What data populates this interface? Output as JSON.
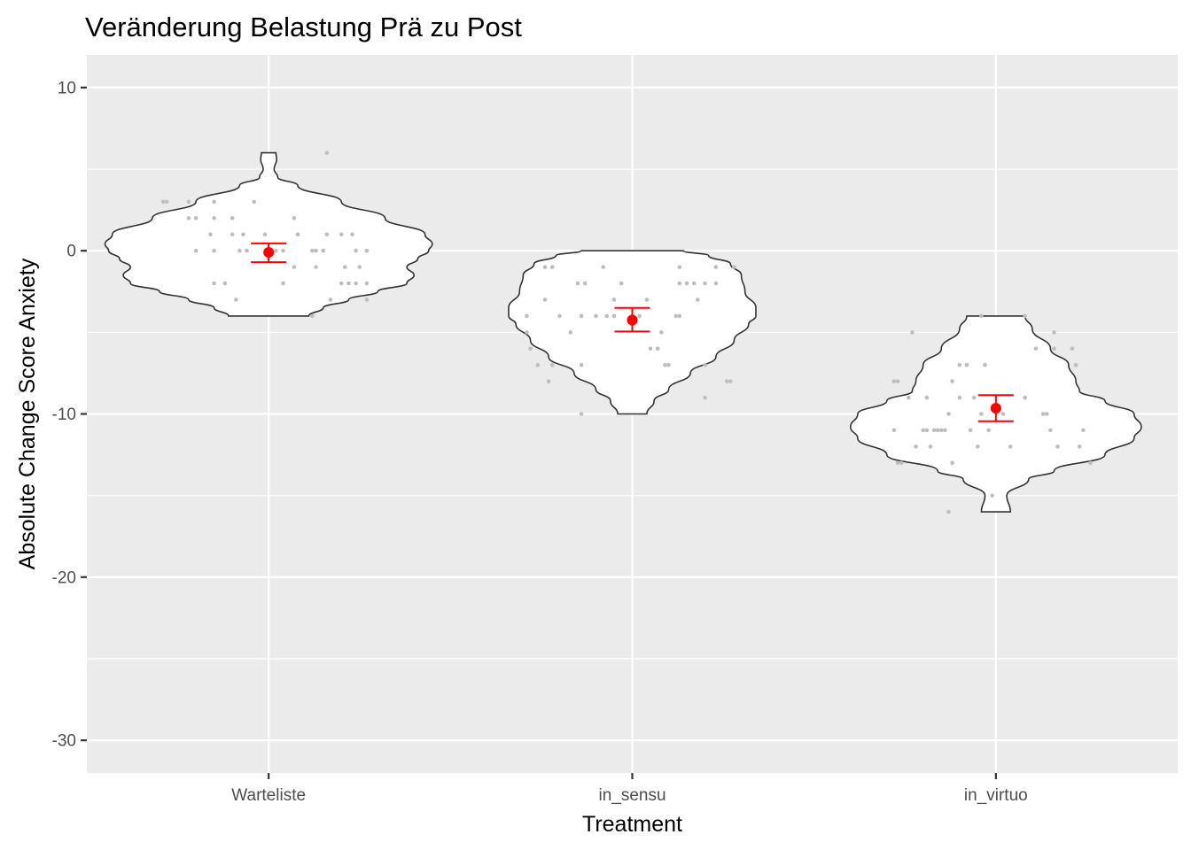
{
  "chart_data": {
    "type": "violin",
    "title": "Veränderung Belastung Prä zu Post",
    "xlabel": "Treatment",
    "ylabel": "Absolute Change Score Anxiety",
    "categories": [
      "Warteliste",
      "in_sensu",
      "in_virtuo"
    ],
    "ylim": [
      -32,
      12
    ],
    "yticks": [
      10,
      0,
      -10,
      -20,
      -30
    ],
    "y_minor_ticks": [
      5,
      -5,
      -15,
      -25
    ],
    "grid": true,
    "legend": "none",
    "colors": {
      "panel": "#ebebeb",
      "grid": "#ffffff",
      "violin_fill": "#ffffff",
      "violin_stroke": "#333333",
      "point": "#bebebe",
      "mean": "#ff0000",
      "tick_label": "#4d4d4d"
    },
    "violins": [
      {
        "group": "Warteliste",
        "profile": [
          {
            "y": 6.0,
            "w": 0.02
          },
          {
            "y": 5.6,
            "w": 0.022
          },
          {
            "y": 5.0,
            "w": 0.015
          },
          {
            "y": 4.5,
            "w": 0.025
          },
          {
            "y": 4.0,
            "w": 0.08
          },
          {
            "y": 3.0,
            "w": 0.2
          },
          {
            "y": 2.0,
            "w": 0.32
          },
          {
            "y": 1.0,
            "w": 0.43
          },
          {
            "y": 0.4,
            "w": 0.45
          },
          {
            "y": 0.0,
            "w": 0.44
          },
          {
            "y": -0.5,
            "w": 0.41
          },
          {
            "y": -1.0,
            "w": 0.38
          },
          {
            "y": -1.5,
            "w": 0.4
          },
          {
            "y": -2.0,
            "w": 0.38
          },
          {
            "y": -2.5,
            "w": 0.3
          },
          {
            "y": -3.0,
            "w": 0.22
          },
          {
            "y": -3.5,
            "w": 0.15
          },
          {
            "y": -4.0,
            "w": 0.11
          }
        ],
        "mean": -0.1,
        "ci": [
          -0.7,
          0.45
        ]
      },
      {
        "group": "in_sensu",
        "profile": [
          {
            "y": 0.0,
            "w": 0.14
          },
          {
            "y": -0.3,
            "w": 0.21
          },
          {
            "y": -0.8,
            "w": 0.27
          },
          {
            "y": -1.5,
            "w": 0.3
          },
          {
            "y": -2.5,
            "w": 0.31
          },
          {
            "y": -3.5,
            "w": 0.34
          },
          {
            "y": -4.0,
            "w": 0.34
          },
          {
            "y": -4.5,
            "w": 0.32
          },
          {
            "y": -5.5,
            "w": 0.28
          },
          {
            "y": -6.5,
            "w": 0.23
          },
          {
            "y": -7.5,
            "w": 0.16
          },
          {
            "y": -8.5,
            "w": 0.1
          },
          {
            "y": -9.2,
            "w": 0.06
          },
          {
            "y": -10.0,
            "w": 0.04
          }
        ],
        "mean": -4.25,
        "ci": [
          -4.95,
          -3.5
        ]
      },
      {
        "group": "in_virtuo",
        "profile": [
          {
            "y": -4.0,
            "w": 0.08
          },
          {
            "y": -4.8,
            "w": 0.1
          },
          {
            "y": -6.0,
            "w": 0.15
          },
          {
            "y": -7.0,
            "w": 0.2
          },
          {
            "y": -8.0,
            "w": 0.22
          },
          {
            "y": -8.6,
            "w": 0.23
          },
          {
            "y": -9.2,
            "w": 0.3
          },
          {
            "y": -10.0,
            "w": 0.38
          },
          {
            "y": -10.8,
            "w": 0.4
          },
          {
            "y": -11.5,
            "w": 0.38
          },
          {
            "y": -12.5,
            "w": 0.3
          },
          {
            "y": -13.5,
            "w": 0.16
          },
          {
            "y": -14.0,
            "w": 0.09
          },
          {
            "y": -15.0,
            "w": 0.03
          },
          {
            "y": -16.0,
            "w": 0.04
          }
        ],
        "mean": -9.65,
        "ci": [
          -10.45,
          -8.85
        ]
      }
    ],
    "points": [
      {
        "group": "Warteliste",
        "values": [
          {
            "dx": -0.29,
            "y": 3
          },
          {
            "dx": -0.28,
            "y": 3
          },
          {
            "dx": -0.22,
            "y": 2
          },
          {
            "dx": -0.2,
            "y": 2
          },
          {
            "dx": -0.22,
            "y": 3
          },
          {
            "dx": -0.15,
            "y": 3
          },
          {
            "dx": -0.15,
            "y": 2
          },
          {
            "dx": -0.1,
            "y": 1
          },
          {
            "dx": -0.07,
            "y": 1
          },
          {
            "dx": -0.01,
            "y": 1
          },
          {
            "dx": -0.16,
            "y": 1
          },
          {
            "dx": -0.2,
            "y": 0
          },
          {
            "dx": -0.15,
            "y": 0
          },
          {
            "dx": -0.08,
            "y": 0
          },
          {
            "dx": -0.06,
            "y": 0
          },
          {
            "dx": -0.15,
            "y": -2
          },
          {
            "dx": -0.12,
            "y": -2
          },
          {
            "dx": -0.09,
            "y": -3
          },
          {
            "dx": 0.04,
            "y": -2
          },
          {
            "dx": 0.04,
            "y": 0
          },
          {
            "dx": 0.08,
            "y": 1
          },
          {
            "dx": 0.12,
            "y": 0
          },
          {
            "dx": 0.13,
            "y": -1
          },
          {
            "dx": 0.07,
            "y": -1
          },
          {
            "dx": 0.02,
            "y": 0
          },
          {
            "dx": 0.16,
            "y": 1
          },
          {
            "dx": 0.17,
            "y": -3
          },
          {
            "dx": 0.07,
            "y": 2
          },
          {
            "dx": -0.1,
            "y": 2
          },
          {
            "dx": 0.12,
            "y": -4
          },
          {
            "dx": 0.16,
            "y": 6
          },
          {
            "dx": 0.2,
            "y": 1
          },
          {
            "dx": 0.23,
            "y": 1
          },
          {
            "dx": 0.24,
            "y": 0
          },
          {
            "dx": 0.21,
            "y": -1
          },
          {
            "dx": 0.2,
            "y": -2
          },
          {
            "dx": 0.22,
            "y": -2
          },
          {
            "dx": 0.24,
            "y": -2
          },
          {
            "dx": 0.25,
            "y": -1
          },
          {
            "dx": 0.27,
            "y": -3
          },
          {
            "dx": 0.27,
            "y": 0
          },
          {
            "dx": 0.27,
            "y": -2
          },
          {
            "dx": 0.13,
            "y": 0
          },
          {
            "dx": -0.04,
            "y": 3
          },
          {
            "dx": 0.15,
            "y": 0
          }
        ]
      },
      {
        "group": "in_sensu",
        "values": [
          {
            "dx": -0.29,
            "y": -5
          },
          {
            "dx": -0.28,
            "y": -6
          },
          {
            "dx": -0.29,
            "y": -4
          },
          {
            "dx": -0.26,
            "y": -7
          },
          {
            "dx": -0.24,
            "y": -1
          },
          {
            "dx": -0.22,
            "y": -1
          },
          {
            "dx": -0.24,
            "y": -3
          },
          {
            "dx": -0.22,
            "y": -7
          },
          {
            "dx": -0.23,
            "y": -8
          },
          {
            "dx": -0.2,
            "y": -4
          },
          {
            "dx": -0.17,
            "y": -5
          },
          {
            "dx": -0.15,
            "y": -2
          },
          {
            "dx": -0.13,
            "y": -2
          },
          {
            "dx": -0.14,
            "y": -4
          },
          {
            "dx": -0.14,
            "y": -7
          },
          {
            "dx": -0.14,
            "y": -10
          },
          {
            "dx": -0.1,
            "y": -4
          },
          {
            "dx": -0.07,
            "y": -4
          },
          {
            "dx": -0.08,
            "y": -1
          },
          {
            "dx": -0.05,
            "y": -3
          },
          {
            "dx": -0.05,
            "y": -4
          },
          {
            "dx": -0.03,
            "y": -2
          },
          {
            "dx": 0.0,
            "y": -4
          },
          {
            "dx": 0.02,
            "y": -4
          },
          {
            "dx": 0.04,
            "y": -3
          },
          {
            "dx": 0.05,
            "y": -6
          },
          {
            "dx": 0.07,
            "y": -6
          },
          {
            "dx": 0.08,
            "y": -5
          },
          {
            "dx": 0.09,
            "y": -7
          },
          {
            "dx": 0.1,
            "y": -7
          },
          {
            "dx": 0.13,
            "y": -1
          },
          {
            "dx": 0.12,
            "y": -4
          },
          {
            "dx": 0.13,
            "y": -4
          },
          {
            "dx": 0.13,
            "y": -2
          },
          {
            "dx": 0.15,
            "y": -2
          },
          {
            "dx": 0.17,
            "y": -2
          },
          {
            "dx": 0.18,
            "y": -3
          },
          {
            "dx": 0.2,
            "y": -2
          },
          {
            "dx": 0.2,
            "y": -9
          },
          {
            "dx": 0.2,
            "y": -7
          },
          {
            "dx": 0.23,
            "y": -1
          },
          {
            "dx": 0.23,
            "y": -2
          },
          {
            "dx": 0.27,
            "y": -8
          },
          {
            "dx": 0.28,
            "y": -1
          },
          {
            "dx": 0.26,
            "y": -8
          }
        ]
      },
      {
        "group": "in_virtuo",
        "values": [
          {
            "dx": -0.28,
            "y": -8
          },
          {
            "dx": -0.27,
            "y": -8
          },
          {
            "dx": -0.28,
            "y": -11
          },
          {
            "dx": -0.27,
            "y": -13
          },
          {
            "dx": -0.26,
            "y": -13
          },
          {
            "dx": -0.24,
            "y": -9
          },
          {
            "dx": -0.23,
            "y": -5
          },
          {
            "dx": -0.22,
            "y": -12
          },
          {
            "dx": -0.2,
            "y": -11
          },
          {
            "dx": -0.19,
            "y": -9
          },
          {
            "dx": -0.19,
            "y": -11
          },
          {
            "dx": -0.18,
            "y": -12
          },
          {
            "dx": -0.17,
            "y": -11
          },
          {
            "dx": -0.16,
            "y": -11
          },
          {
            "dx": -0.15,
            "y": -11
          },
          {
            "dx": -0.14,
            "y": -11
          },
          {
            "dx": -0.13,
            "y": -16
          },
          {
            "dx": -0.13,
            "y": -10
          },
          {
            "dx": -0.12,
            "y": -8
          },
          {
            "dx": -0.12,
            "y": -13
          },
          {
            "dx": -0.1,
            "y": -9
          },
          {
            "dx": -0.1,
            "y": -7
          },
          {
            "dx": -0.08,
            "y": -7
          },
          {
            "dx": -0.07,
            "y": -11
          },
          {
            "dx": -0.06,
            "y": -9
          },
          {
            "dx": -0.05,
            "y": -12
          },
          {
            "dx": -0.03,
            "y": -7
          },
          {
            "dx": -0.04,
            "y": -4
          },
          {
            "dx": -0.04,
            "y": -10
          },
          {
            "dx": -0.02,
            "y": -11
          },
          {
            "dx": -0.01,
            "y": -15
          },
          {
            "dx": 0.02,
            "y": -10
          },
          {
            "dx": 0.04,
            "y": -12
          },
          {
            "dx": 0.08,
            "y": -4
          },
          {
            "dx": 0.08,
            "y": -9
          },
          {
            "dx": 0.11,
            "y": -6
          },
          {
            "dx": 0.13,
            "y": -10
          },
          {
            "dx": 0.14,
            "y": -10
          },
          {
            "dx": 0.15,
            "y": -11
          },
          {
            "dx": 0.16,
            "y": -5
          },
          {
            "dx": 0.16,
            "y": -6
          },
          {
            "dx": 0.17,
            "y": -12
          },
          {
            "dx": 0.21,
            "y": -6
          },
          {
            "dx": 0.22,
            "y": -7
          },
          {
            "dx": 0.24,
            "y": -11
          },
          {
            "dx": 0.26,
            "y": -13
          },
          {
            "dx": 0.23,
            "y": -12
          }
        ]
      }
    ]
  }
}
